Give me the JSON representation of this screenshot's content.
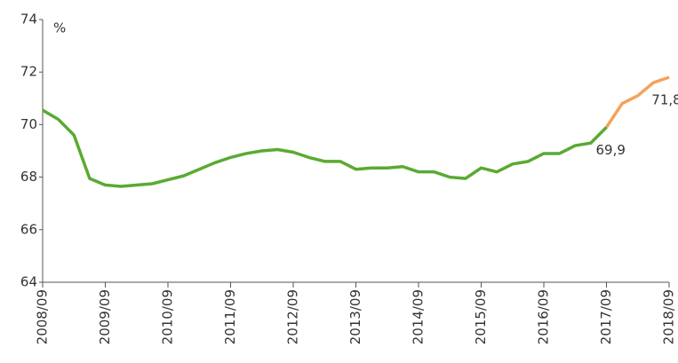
{
  "chart_data": {
    "type": "line",
    "y_label": "%",
    "categories": [
      "2008/09",
      null,
      null,
      null,
      "2009/09",
      null,
      null,
      null,
      "2010/09",
      null,
      null,
      null,
      "2011/09",
      null,
      null,
      null,
      "2012/09",
      null,
      null,
      null,
      "2013/09",
      null,
      null,
      null,
      "2014/09",
      null,
      null,
      null,
      "2015/09",
      null,
      null,
      null,
      "2016/09",
      null,
      null,
      null,
      "2017/09",
      null,
      null,
      null,
      "2018/09"
    ],
    "series": [
      {
        "color": "#5aaa32",
        "values": [
          70.55,
          70.2,
          69.6,
          67.95,
          67.7,
          67.65,
          67.7,
          67.75,
          67.9,
          68.05,
          68.3,
          68.55,
          68.75,
          68.9,
          69.0,
          69.05,
          68.95,
          68.75,
          68.6,
          68.6,
          68.3,
          68.35,
          68.35,
          68.4,
          68.2,
          68.2,
          68.0,
          67.95,
          68.35,
          68.2,
          68.5,
          68.6,
          68.9,
          68.9,
          69.2,
          69.3,
          69.9,
          null,
          null,
          null,
          null
        ],
        "value_labels": [
          null,
          null,
          null,
          null,
          null,
          null,
          null,
          null,
          null,
          null,
          null,
          null,
          null,
          null,
          null,
          null,
          null,
          null,
          null,
          null,
          null,
          null,
          null,
          null,
          null,
          null,
          null,
          null,
          null,
          null,
          null,
          null,
          null,
          null,
          null,
          null,
          "69,9",
          null,
          null,
          null,
          null
        ]
      },
      {
        "color": "#f4a259",
        "values": [
          null,
          null,
          null,
          null,
          null,
          null,
          null,
          null,
          null,
          null,
          null,
          null,
          null,
          null,
          null,
          null,
          null,
          null,
          null,
          null,
          null,
          null,
          null,
          null,
          null,
          null,
          null,
          null,
          null,
          null,
          null,
          null,
          null,
          null,
          null,
          null,
          69.9,
          70.8,
          71.1,
          71.6,
          71.8
        ],
        "value_labels": [
          null,
          null,
          null,
          null,
          null,
          null,
          null,
          null,
          null,
          null,
          null,
          null,
          null,
          null,
          null,
          null,
          null,
          null,
          null,
          null,
          null,
          null,
          null,
          null,
          null,
          null,
          null,
          null,
          null,
          null,
          null,
          null,
          null,
          null,
          null,
          null,
          null,
          null,
          null,
          null,
          "71,8"
        ]
      }
    ],
    "ylim": [
      64,
      74
    ],
    "yticks": [
      64,
      66,
      68,
      70,
      72,
      74
    ],
    "grid": false
  }
}
